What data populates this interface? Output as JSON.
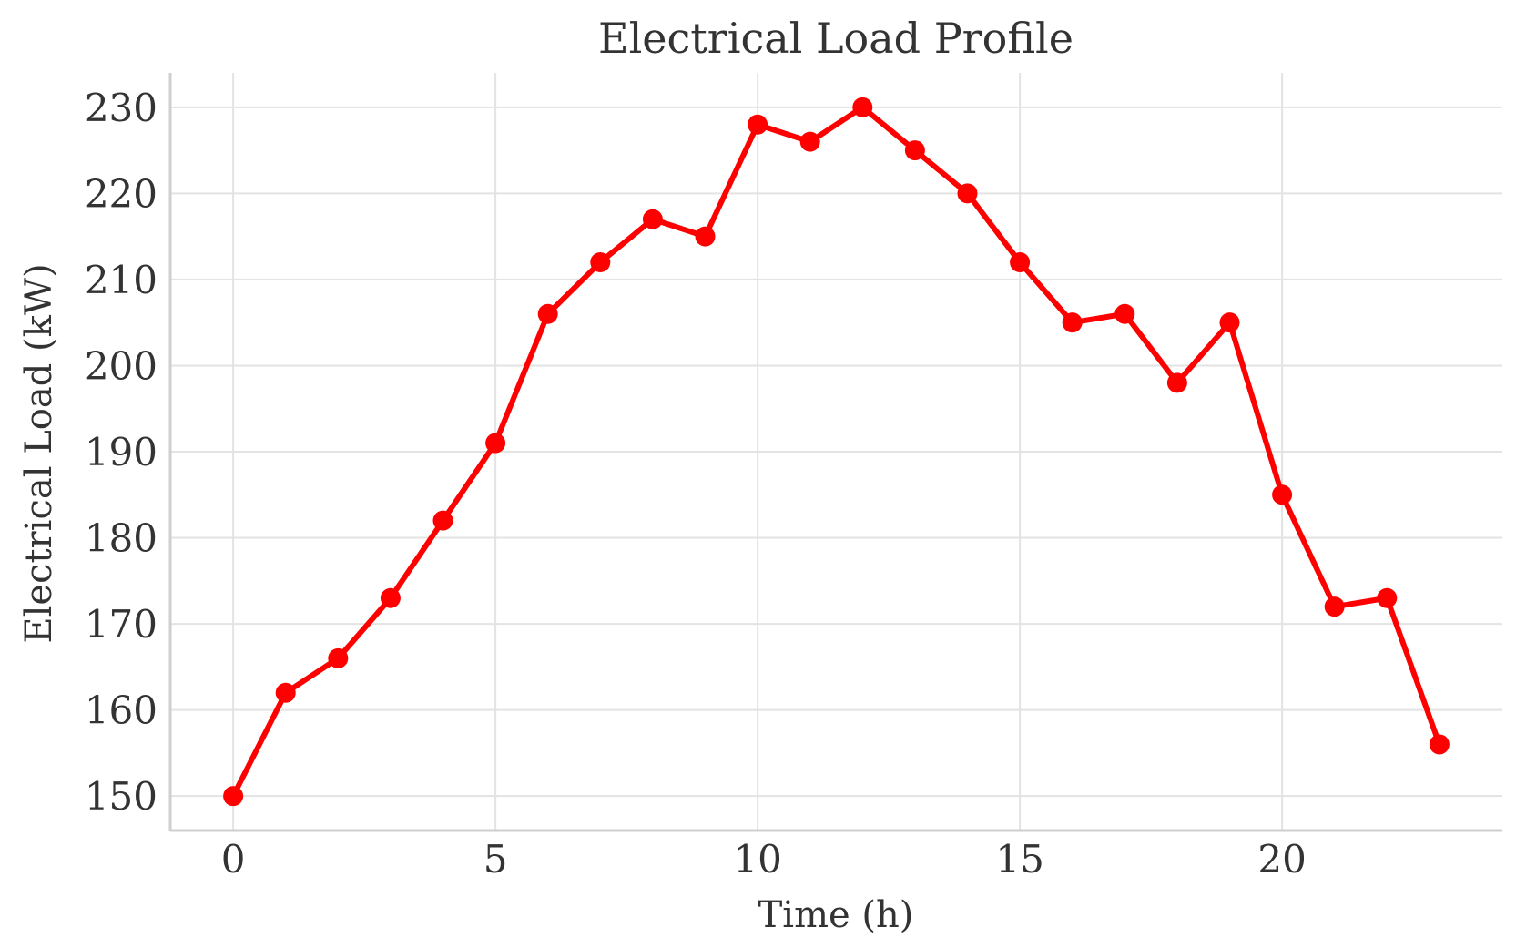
{
  "chart_data": {
    "type": "line",
    "title": "Electrical Load Profile",
    "xlabel": "Time (h)",
    "ylabel": "Electrical Load (kW)",
    "xlim": [
      -1.2,
      24.2
    ],
    "ylim": [
      146,
      234
    ],
    "xticks": [
      0,
      5,
      10,
      15,
      20
    ],
    "yticks": [
      150,
      160,
      170,
      180,
      190,
      200,
      210,
      220,
      230
    ],
    "grid": true,
    "series": [
      {
        "color": "#ff0000",
        "x": [
          0,
          1,
          2,
          3,
          4,
          5,
          6,
          7,
          8,
          9,
          10,
          11,
          12,
          13,
          14,
          15,
          16,
          17,
          18,
          19,
          20,
          21,
          22,
          23
        ],
        "y": [
          150,
          162,
          166,
          173,
          182,
          191,
          206,
          212,
          217,
          215,
          228,
          226,
          230,
          225,
          220,
          212,
          205,
          206,
          198,
          205,
          185,
          172,
          173,
          156
        ]
      }
    ]
  }
}
